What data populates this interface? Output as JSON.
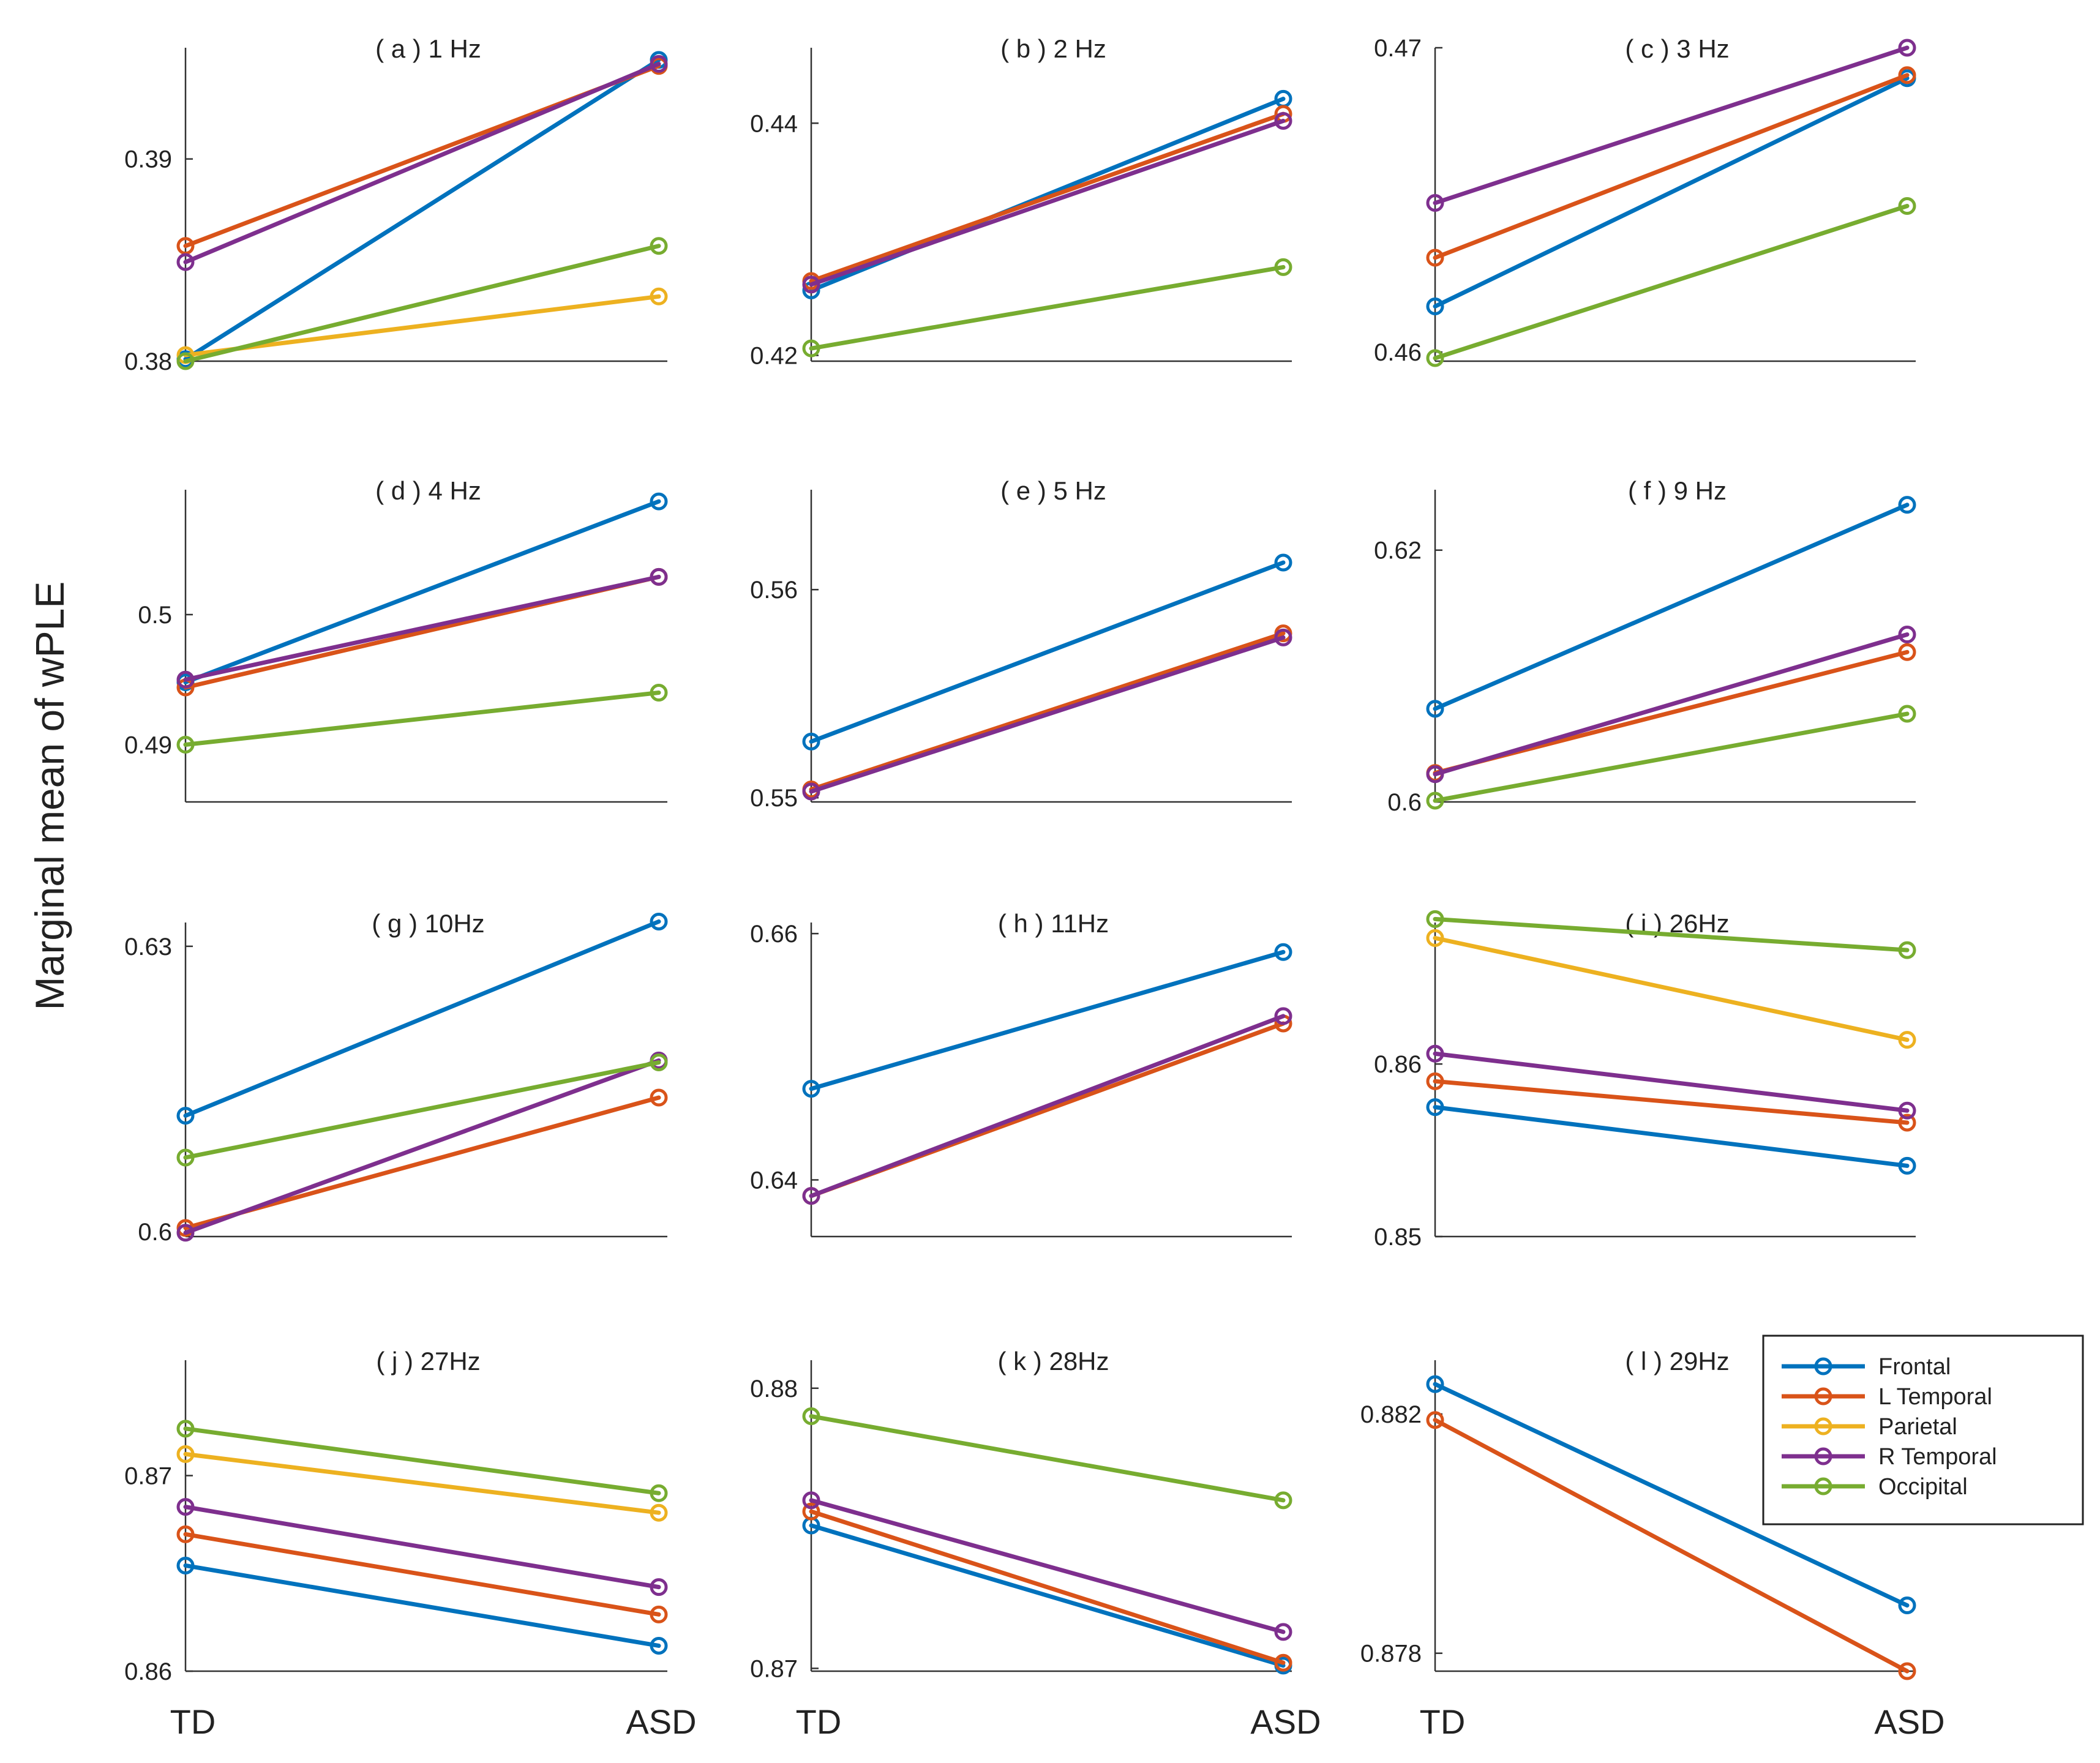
{
  "ylabel": "Marginal mean of wPLE",
  "group_labels": [
    "TD",
    "ASD"
  ],
  "legend": {
    "placement": "inside panel (l), top-left",
    "entries": [
      {
        "name": "Frontal",
        "color": "#0072BD"
      },
      {
        "name": "L Temporal",
        "color": "#D95319"
      },
      {
        "name": "Parietal",
        "color": "#EDB120"
      },
      {
        "name": "R Temporal",
        "color": "#7E2F8E"
      },
      {
        "name": "Occipital",
        "color": "#77AC30"
      }
    ]
  },
  "chart_data": [
    {
      "type": "line",
      "title": "( a ) 1 Hz",
      "categories": [
        "TD",
        "ASD"
      ],
      "ylim": [
        0.38,
        0.3955
      ],
      "yticks": [
        "0.38",
        "0.39"
      ],
      "series": [
        {
          "name": "Frontal",
          "values": [
            0.3801,
            0.3949
          ]
        },
        {
          "name": "L Temporal",
          "values": [
            0.3857,
            0.3946
          ]
        },
        {
          "name": "Parietal",
          "values": [
            0.3803,
            0.3832
          ]
        },
        {
          "name": "R Temporal",
          "values": [
            0.3849,
            0.3947
          ]
        },
        {
          "name": "Occipital",
          "values": [
            0.38,
            0.3857
          ]
        }
      ]
    },
    {
      "type": "line",
      "title": "( b ) 2 Hz",
      "categories": [
        "TD",
        "ASD"
      ],
      "ylim": [
        0.4195,
        0.4465
      ],
      "yticks": [
        "0.42",
        "0.44"
      ],
      "series": [
        {
          "name": "Frontal",
          "values": [
            0.4256,
            0.4421
          ]
        },
        {
          "name": "L Temporal",
          "values": [
            0.4264,
            0.4408
          ]
        },
        {
          "name": "R Temporal",
          "values": [
            0.4261,
            0.4402
          ]
        },
        {
          "name": "Occipital",
          "values": [
            0.4206,
            0.4276
          ]
        }
      ]
    },
    {
      "type": "line",
      "title": "( c ) 3 Hz",
      "categories": [
        "TD",
        "ASD"
      ],
      "ylim": [
        0.4597,
        0.47
      ],
      "yticks": [
        "0.46",
        "0.47"
      ],
      "series": [
        {
          "name": "Frontal",
          "values": [
            0.4615,
            0.469
          ]
        },
        {
          "name": "L Temporal",
          "values": [
            0.4631,
            0.4691
          ]
        },
        {
          "name": "R Temporal",
          "values": [
            0.4649,
            0.47
          ]
        },
        {
          "name": "Occipital",
          "values": [
            0.4598,
            0.4648
          ]
        }
      ]
    },
    {
      "type": "line",
      "title": "( d ) 4 Hz",
      "categories": [
        "TD",
        "ASD"
      ],
      "ylim": [
        0.4856,
        0.5096
      ],
      "yticks": [
        "0.49",
        "0.5"
      ],
      "series": [
        {
          "name": "Frontal",
          "values": [
            0.4948,
            0.5087
          ]
        },
        {
          "name": "L Temporal",
          "values": [
            0.4944,
            0.5029
          ]
        },
        {
          "name": "R Temporal",
          "values": [
            0.495,
            0.5029
          ]
        },
        {
          "name": "Occipital",
          "values": [
            0.49,
            0.494
          ]
        }
      ]
    },
    {
      "type": "line",
      "title": "( e ) 5 Hz",
      "categories": [
        "TD",
        "ASD"
      ],
      "ylim": [
        0.5498,
        0.5648
      ],
      "yticks": [
        "0.55",
        "0.56"
      ],
      "series": [
        {
          "name": "Frontal",
          "values": [
            0.5527,
            0.5613
          ]
        },
        {
          "name": "L Temporal",
          "values": [
            0.5504,
            0.5579
          ]
        },
        {
          "name": "R Temporal",
          "values": [
            0.5503,
            0.5577
          ]
        }
      ]
    },
    {
      "type": "line",
      "title": "( f ) 9 Hz",
      "categories": [
        "TD",
        "ASD"
      ],
      "ylim": [
        0.6,
        0.6248
      ],
      "yticks": [
        "0.6",
        "0.62"
      ],
      "series": [
        {
          "name": "Frontal",
          "values": [
            0.6074,
            0.6236
          ]
        },
        {
          "name": "L Temporal",
          "values": [
            0.6023,
            0.6119
          ]
        },
        {
          "name": "R Temporal",
          "values": [
            0.6022,
            0.6133
          ]
        },
        {
          "name": "Occipital",
          "values": [
            0.6001,
            0.607
          ]
        }
      ]
    },
    {
      "type": "line",
      "title": "( g ) 10Hz",
      "categories": [
        "TD",
        "ASD"
      ],
      "ylim": [
        0.5995,
        0.6325
      ],
      "yticks": [
        "0.6",
        "0.63"
      ],
      "series": [
        {
          "name": "Frontal",
          "values": [
            0.6122,
            0.6326
          ]
        },
        {
          "name": "L Temporal",
          "values": [
            0.6004,
            0.6141
          ]
        },
        {
          "name": "R Temporal",
          "values": [
            0.5999,
            0.618
          ]
        },
        {
          "name": "Occipital",
          "values": [
            0.6078,
            0.6178
          ]
        }
      ]
    },
    {
      "type": "line",
      "title": "( h ) 11Hz",
      "categories": [
        "TD",
        "ASD"
      ],
      "ylim": [
        0.6354,
        0.6609
      ],
      "yticks": [
        "0.64",
        "0.66"
      ],
      "series": [
        {
          "name": "Frontal",
          "values": [
            0.6474,
            0.6585
          ]
        },
        {
          "name": "L Temporal",
          "values": [
            0.6387,
            0.6527
          ]
        },
        {
          "name": "R Temporal",
          "values": [
            0.6387,
            0.6533
          ]
        }
      ]
    },
    {
      "type": "line",
      "title": "( i ) 26Hz",
      "categories": [
        "TD",
        "ASD"
      ],
      "ylim": [
        0.85,
        0.8682
      ],
      "yticks": [
        "0.85",
        "0.86"
      ],
      "series": [
        {
          "name": "Frontal",
          "values": [
            0.8575,
            0.8541
          ]
        },
        {
          "name": "L Temporal",
          "values": [
            0.859,
            0.8566
          ]
        },
        {
          "name": "Parietal",
          "values": [
            0.8673,
            0.8614
          ]
        },
        {
          "name": "R Temporal",
          "values": [
            0.8606,
            0.8573
          ]
        },
        {
          "name": "Occipital",
          "values": [
            0.8684,
            0.8666
          ]
        }
      ]
    },
    {
      "type": "line",
      "title": "( j ) 27Hz",
      "categories": [
        "TD",
        "ASD"
      ],
      "ylim": [
        0.86,
        0.8759
      ],
      "yticks": [
        "0.86",
        "0.87"
      ],
      "series": [
        {
          "name": "Frontal",
          "values": [
            0.8654,
            0.8613
          ]
        },
        {
          "name": "L Temporal",
          "values": [
            0.867,
            0.8629
          ]
        },
        {
          "name": "Parietal",
          "values": [
            0.8711,
            0.8681
          ]
        },
        {
          "name": "R Temporal",
          "values": [
            0.8684,
            0.8643
          ]
        },
        {
          "name": "Occipital",
          "values": [
            0.8724,
            0.8691
          ]
        }
      ]
    },
    {
      "type": "line",
      "title": "( k ) 28Hz",
      "categories": [
        "TD",
        "ASD"
      ],
      "ylim": [
        0.8699,
        0.881
      ],
      "yticks": [
        "0.87",
        "0.88"
      ],
      "series": [
        {
          "name": "Frontal",
          "values": [
            0.8751,
            0.8701
          ]
        },
        {
          "name": "L Temporal",
          "values": [
            0.8756,
            0.8702
          ]
        },
        {
          "name": "R Temporal",
          "values": [
            0.876,
            0.8713
          ]
        },
        {
          "name": "Occipital",
          "values": [
            0.879,
            0.876
          ]
        }
      ]
    },
    {
      "type": "line",
      "title": "( l ) 29Hz",
      "categories": [
        "TD",
        "ASD"
      ],
      "ylim": [
        0.8777,
        0.8829
      ],
      "yticks": [
        "0.878",
        "0.882"
      ],
      "series": [
        {
          "name": "Frontal",
          "values": [
            0.8825,
            0.8788
          ]
        },
        {
          "name": "L Temporal",
          "values": [
            0.8819,
            0.8777
          ]
        }
      ]
    }
  ]
}
